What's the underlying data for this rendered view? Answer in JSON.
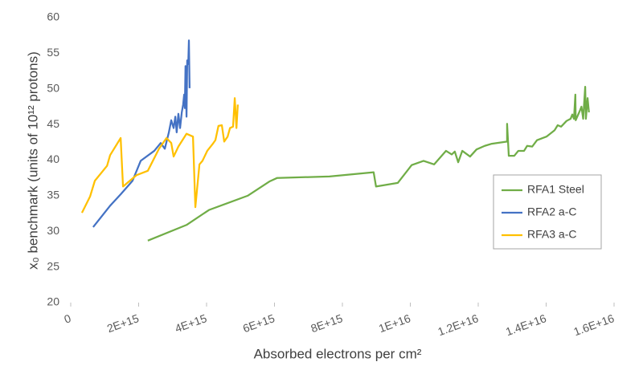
{
  "chart_data": {
    "type": "line",
    "x_label": "Absorbed electrons per cm²",
    "y_label": "x₀ benchmark (units of 10¹² protons)",
    "xlim": [
      0,
      1.6e+16
    ],
    "xticks": [
      0,
      {
        "value": 2000000000000000.0,
        "label": "2E+15"
      },
      {
        "value": 4000000000000000.0,
        "label": "4E+15"
      },
      {
        "value": 6000000000000000.0,
        "label": "6E+15"
      },
      {
        "value": 8000000000000000.0,
        "label": "8E+15"
      },
      {
        "value": 1e+16,
        "label": "1E+16"
      },
      {
        "value": 1.2e+16,
        "label": "1.2E+16"
      },
      {
        "value": 1.4e+16,
        "label": "1.4E+16"
      },
      {
        "value": 1.6e+16,
        "label": "1.6E+16"
      }
    ],
    "ylim": [
      20,
      60
    ],
    "yticks": [
      20,
      25,
      30,
      35,
      40,
      45,
      50,
      55,
      60
    ],
    "grid": false,
    "legend": "right",
    "series": [
      {
        "name": "RFA1 Steel",
        "color": "#70ad47",
        "x": [
          2270000000000000.0,
          3410000000000000.0,
          4070000000000000.0,
          5210000000000000.0,
          5850000000000000.0,
          6080000000000000.0,
          7620000000000000.0,
          8920000000000000.0,
          8990000000000000.0,
          9630000000000000.0,
          1.004e+16,
          1.039e+16,
          1.07e+16,
          1.105e+16,
          1.122e+16,
          1.131e+16,
          1.141e+16,
          1.153e+16,
          1.176e+16,
          1.195e+16,
          1.219e+16,
          1.24e+16,
          1.285e+16,
          1.285e+16,
          1.29e+16,
          1.306e+16,
          1.318e+16,
          1.335e+16,
          1.344e+16,
          1.359e+16,
          1.373e+16,
          1.401e+16,
          1.425e+16,
          1.434e+16,
          1.444e+16,
          1.46e+16,
          1.472e+16,
          1.477e+16,
          1.482e+16,
          1.486e+16,
          1.487e+16,
          1.499e+16,
          1.504e+16,
          1.509e+16,
          1.515e+16,
          1.517e+16,
          1.522e+16,
          1.526e+16
        ],
        "values": [
          28.7,
          30.9,
          33.0,
          35.0,
          37.0,
          37.5,
          37.7,
          38.3,
          36.3,
          36.8,
          39.3,
          39.9,
          39.4,
          41.3,
          40.8,
          41.2,
          39.7,
          41.3,
          40.5,
          41.5,
          42.0,
          42.3,
          42.6,
          45.1,
          40.6,
          40.6,
          41.3,
          41.3,
          42.0,
          41.9,
          42.8,
          43.3,
          44.2,
          44.9,
          44.7,
          45.5,
          45.8,
          46.4,
          45.8,
          49.2,
          45.6,
          46.9,
          47.5,
          45.8,
          50.3,
          45.8,
          48.7,
          46.7
        ]
      },
      {
        "name": "RFA2 a-C",
        "color": "#4472c4",
        "x": [
          660000000000000.0,
          1160000000000000.0,
          1470000000000000.0,
          1820000000000000.0,
          2060000000000000.0,
          2460000000000000.0,
          2650000000000000.0,
          2770000000000000.0,
          2890000000000000.0,
          2960000000000000.0,
          3030000000000000.0,
          3080000000000000.0,
          3120000000000000.0,
          3170000000000000.0,
          3220000000000000.0,
          3270000000000000.0,
          3310000000000000.0,
          3340000000000000.0,
          3360000000000000.0,
          3380000000000000.0,
          3410000000000000.0,
          3430000000000000.0,
          3460000000000000.0,
          3480000000000000.0,
          3500000000000000.0
        ],
        "values": [
          30.6,
          33.6,
          35.2,
          37.1,
          39.9,
          41.3,
          42.4,
          41.6,
          43.9,
          45.6,
          44.5,
          46.1,
          43.9,
          46.5,
          44.5,
          46.7,
          47.8,
          49.2,
          47.3,
          53.2,
          46.1,
          54.0,
          53.5,
          56.8,
          50.1
        ]
      },
      {
        "name": "RFA3 a-C",
        "color": "#ffc000",
        "x": [
          330000000000000.0,
          570000000000000.0,
          710000000000000.0,
          1070000000000000.0,
          1160000000000000.0,
          1470000000000000.0,
          1540000000000000.0,
          1940000000000000.0,
          2270000000000000.0,
          2600000000000000.0,
          2820000000000000.0,
          2960000000000000.0,
          3030000000000000.0,
          3170000000000000.0,
          3410000000000000.0,
          3600000000000000.0,
          3670000000000000.0,
          3790000000000000.0,
          3880000000000000.0,
          4020000000000000.0,
          4170000000000000.0,
          4260000000000000.0,
          4350000000000000.0,
          4450000000000000.0,
          4520000000000000.0,
          4620000000000000.0,
          4690000000000000.0,
          4780000000000000.0,
          4830000000000000.0,
          4880000000000000.0,
          4920000000000000.0
        ],
        "values": [
          32.6,
          34.9,
          37.1,
          39.2,
          40.7,
          43.1,
          36.3,
          37.9,
          38.5,
          41.6,
          43.1,
          42.4,
          40.5,
          41.9,
          43.7,
          43.3,
          33.4,
          39.4,
          39.9,
          41.3,
          42.2,
          42.8,
          44.8,
          44.9,
          42.6,
          43.3,
          44.5,
          44.7,
          48.7,
          44.5,
          47.8
        ]
      }
    ]
  }
}
